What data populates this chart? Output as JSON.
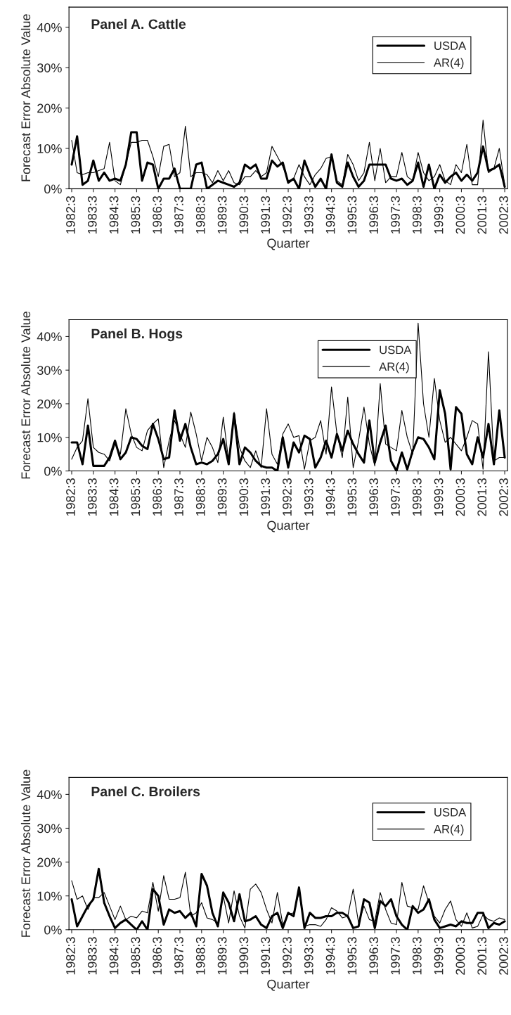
{
  "chart_data": [
    {
      "type": "line",
      "title": "Panel A. Cattle",
      "xlabel": "Quarter",
      "ylabel": "Forecast Error Absolute Value",
      "categories": [
        "1982:3",
        null,
        null,
        null,
        "1983:3",
        null,
        null,
        null,
        "1984:3",
        null,
        null,
        null,
        "1985:3",
        null,
        null,
        null,
        "1986:3",
        null,
        null,
        null,
        "1987:3",
        null,
        null,
        null,
        "1988:3",
        null,
        null,
        null,
        "1989:3",
        null,
        null,
        null,
        "1990:3",
        null,
        null,
        null,
        "1991:3",
        null,
        null,
        null,
        "1992:3",
        null,
        null,
        null,
        "1993:3",
        null,
        null,
        null,
        "1994:3",
        null,
        null,
        null,
        "1995:3",
        null,
        null,
        null,
        "1996:3",
        null,
        null,
        null,
        "1997:3",
        null,
        null,
        null,
        "1998:3",
        null,
        null,
        null,
        "1999:3",
        null,
        null,
        null,
        "2000:3",
        null,
        null,
        null,
        "2001:3",
        null,
        null,
        null,
        "2002:3"
      ],
      "series": [
        {
          "name": "USDA",
          "color": "#000000",
          "values": [
            6,
            13,
            1,
            2,
            7,
            2,
            4,
            2,
            2.5,
            2,
            6,
            14,
            14,
            2,
            6.5,
            6,
            0,
            2.5,
            2.5,
            5,
            0,
            0,
            0,
            6,
            6.5,
            0,
            1,
            2,
            1.5,
            1,
            0.5,
            1.5,
            6,
            5,
            6,
            2.5,
            2.5,
            7,
            5.5,
            6.5,
            1.5,
            2.5,
            0,
            7,
            3.5,
            0.5,
            2.5,
            0,
            8.5,
            1.5,
            0.5,
            6.5,
            3,
            0.5,
            2,
            6,
            6,
            6,
            6,
            2.5,
            2,
            2.5,
            1,
            2,
            6.5,
            0.5,
            6,
            0,
            3.5,
            1.5,
            3,
            4,
            2,
            3.5,
            2,
            4,
            10.5,
            4.5,
            5,
            6,
            0.5
          ]
        },
        {
          "name": "AR(4)",
          "color": "#000000",
          "values": [
            12,
            4,
            3.5,
            4,
            4,
            4.5,
            5,
            11.5,
            2,
            1,
            6,
            11.5,
            11.5,
            12,
            12,
            8,
            3,
            10.5,
            11,
            3,
            4,
            15.5,
            3,
            4,
            4,
            3.5,
            1.5,
            4.5,
            2,
            4.5,
            1.5,
            1,
            3,
            3,
            4.5,
            3,
            4,
            10.5,
            8,
            5.5,
            2,
            2.5,
            6,
            3,
            1,
            3.5,
            5,
            7.5,
            8,
            2,
            1,
            8.5,
            6,
            2,
            4,
            11.5,
            2,
            10,
            1.5,
            3,
            3,
            9,
            3,
            2,
            9,
            4,
            2,
            3,
            6,
            2,
            1,
            6,
            4,
            11,
            1,
            1,
            17,
            4,
            5,
            10,
            1
          ]
        }
      ],
      "ylim": [
        0,
        45
      ],
      "yticks": [
        {
          "value": 0,
          "label": "0%"
        },
        {
          "value": 10,
          "label": "10%"
        },
        {
          "value": 20,
          "label": "20%"
        },
        {
          "value": 30,
          "label": "30%"
        },
        {
          "value": 40,
          "label": "40%"
        }
      ],
      "legend": "top right",
      "grid": false
    },
    {
      "type": "line",
      "title": "Panel B. Hogs",
      "xlabel": "Quarter",
      "ylabel": "Forecast Error Absolute Value",
      "categories": [
        "1982:3",
        null,
        null,
        null,
        "1983:3",
        null,
        null,
        null,
        "1984:3",
        null,
        null,
        null,
        "1985:3",
        null,
        null,
        null,
        "1986:3",
        null,
        null,
        null,
        "1987:3",
        null,
        null,
        null,
        "1988:3",
        null,
        null,
        null,
        "1989:3",
        null,
        null,
        null,
        "1990:3",
        null,
        null,
        null,
        "1991:3",
        null,
        null,
        null,
        "1992:3",
        null,
        null,
        null,
        "1993:3",
        null,
        null,
        null,
        "1994:3",
        null,
        null,
        null,
        "1995:3",
        null,
        null,
        null,
        "1996:3",
        null,
        null,
        null,
        "1997:3",
        null,
        null,
        null,
        "1998:3",
        null,
        null,
        null,
        "1999:3",
        null,
        null,
        null,
        "2000:3",
        null,
        null,
        null,
        "2001:3",
        null,
        null,
        null,
        "2002:3"
      ],
      "series": [
        {
          "name": "USDA",
          "color": "#000000",
          "values": [
            8.5,
            8.5,
            2,
            13.5,
            1.5,
            1.5,
            1.5,
            4,
            9,
            3.5,
            5.5,
            10,
            9.5,
            7.5,
            6.5,
            14,
            9.5,
            3.5,
            4,
            18,
            9,
            14,
            7,
            2,
            2.5,
            2,
            3,
            5,
            9.5,
            2,
            17,
            2,
            7,
            5.5,
            3,
            1.5,
            1,
            1,
            0,
            10,
            1,
            8.5,
            5.5,
            10.5,
            9.5,
            1,
            4,
            9,
            4,
            11,
            6,
            12,
            8,
            5,
            2.5,
            15,
            2.5,
            8.5,
            13.5,
            3,
            0,
            5.5,
            0.5,
            6,
            10,
            9.5,
            7,
            3.5,
            24,
            17,
            0.5,
            19,
            17,
            5,
            2,
            10,
            4,
            14,
            2,
            18,
            4
          ]
        },
        {
          "name": "AR(4)",
          "color": "#000000",
          "values": [
            3.5,
            7,
            9,
            21.5,
            7,
            5.5,
            5,
            3,
            8,
            5,
            18.5,
            11,
            7,
            6,
            12,
            14,
            15.5,
            1,
            9,
            15,
            11,
            7,
            17.5,
            11,
            3,
            10,
            7,
            2.5,
            16,
            3,
            17.5,
            7,
            3,
            1,
            6,
            1,
            18.5,
            5,
            2,
            11,
            14,
            10,
            10.5,
            0.5,
            9,
            10,
            15,
            5,
            25,
            11,
            4,
            22,
            1,
            9,
            19,
            8,
            1.5,
            26,
            8,
            7,
            6,
            18,
            10,
            5,
            44,
            20,
            10,
            27.5,
            15,
            8.5,
            10,
            8,
            6,
            10,
            15,
            14,
            0.5,
            35.5,
            3,
            4,
            4
          ]
        }
      ],
      "ylim": [
        0,
        45
      ],
      "yticks": [
        {
          "value": 0,
          "label": "0%"
        },
        {
          "value": 10,
          "label": "10%"
        },
        {
          "value": 20,
          "label": "20%"
        },
        {
          "value": 30,
          "label": "30%"
        },
        {
          "value": 40,
          "label": "40%"
        }
      ],
      "legend": "top",
      "grid": false
    },
    {
      "type": "line",
      "title": "Panel C. Broilers",
      "xlabel": "Quarter",
      "ylabel": "Forecast Error Absolute Value",
      "categories": [
        "1982:3",
        null,
        null,
        null,
        "1983:3",
        null,
        null,
        null,
        "1984:3",
        null,
        null,
        null,
        "1985:3",
        null,
        null,
        null,
        "1986:3",
        null,
        null,
        null,
        "1987:3",
        null,
        null,
        null,
        "1988:3",
        null,
        null,
        null,
        "1989:3",
        null,
        null,
        null,
        "1990:3",
        null,
        null,
        null,
        "1991:3",
        null,
        null,
        null,
        "1992:3",
        null,
        null,
        null,
        "1993:3",
        null,
        null,
        null,
        "1994:3",
        null,
        null,
        null,
        "1995:3",
        null,
        null,
        null,
        "1996:3",
        null,
        null,
        null,
        "1997:3",
        null,
        null,
        null,
        "1998:3",
        null,
        null,
        null,
        "1999:3",
        null,
        null,
        null,
        "2000:3",
        null,
        null,
        null,
        "2001:3",
        null,
        null,
        null,
        "2002:3"
      ],
      "series": [
        {
          "name": "USDA",
          "color": "#000000",
          "values": [
            9,
            1,
            4,
            7,
            9,
            18,
            8,
            4,
            0.5,
            2,
            3,
            1.5,
            0,
            2.5,
            0,
            12,
            10,
            1.5,
            6,
            5,
            5.5,
            3.5,
            5,
            1,
            16.5,
            13,
            5,
            1,
            11,
            8,
            2.5,
            10.5,
            2.5,
            3,
            4,
            1.5,
            0.5,
            4,
            5,
            0.5,
            5,
            4,
            12.5,
            0.5,
            5,
            3.5,
            3.5,
            4,
            4,
            5,
            5,
            4,
            0.5,
            1,
            9,
            8,
            0.5,
            8.5,
            7,
            9,
            4,
            1.5,
            0,
            7,
            5,
            6,
            9,
            3,
            0.5,
            1,
            1.5,
            1,
            2.5,
            2,
            2,
            5,
            5,
            0.5,
            2,
            1.5,
            2.5
          ]
        },
        {
          "name": "AR(4)",
          "color": "#000000",
          "values": [
            14.5,
            9,
            10,
            6,
            9.5,
            9.5,
            11,
            7,
            3,
            7,
            3,
            4,
            3.5,
            5.5,
            5,
            14,
            5.5,
            16,
            9,
            9,
            9.5,
            17,
            4,
            5,
            8,
            3.5,
            3,
            2,
            10,
            2,
            11.5,
            4,
            0.5,
            12,
            13.5,
            11,
            6,
            2,
            11,
            1.5,
            4.5,
            5,
            11,
            1,
            1.5,
            1.5,
            1,
            3,
            6.5,
            5.5,
            3.5,
            4,
            12,
            2,
            7,
            3,
            2.5,
            11,
            6,
            2,
            1.5,
            14,
            7,
            6.5,
            6,
            13,
            8,
            4,
            2,
            6,
            8.5,
            3,
            1,
            5,
            0.5,
            1,
            4.5,
            3,
            2.5,
            3.5,
            3
          ]
        }
      ],
      "ylim": [
        0,
        45
      ],
      "yticks": [
        {
          "value": 0,
          "label": "0%"
        },
        {
          "value": 10,
          "label": "10%"
        },
        {
          "value": 20,
          "label": "20%"
        },
        {
          "value": 30,
          "label": "30%"
        },
        {
          "value": 40,
          "label": "40%"
        }
      ],
      "legend": "top right",
      "grid": false
    }
  ]
}
